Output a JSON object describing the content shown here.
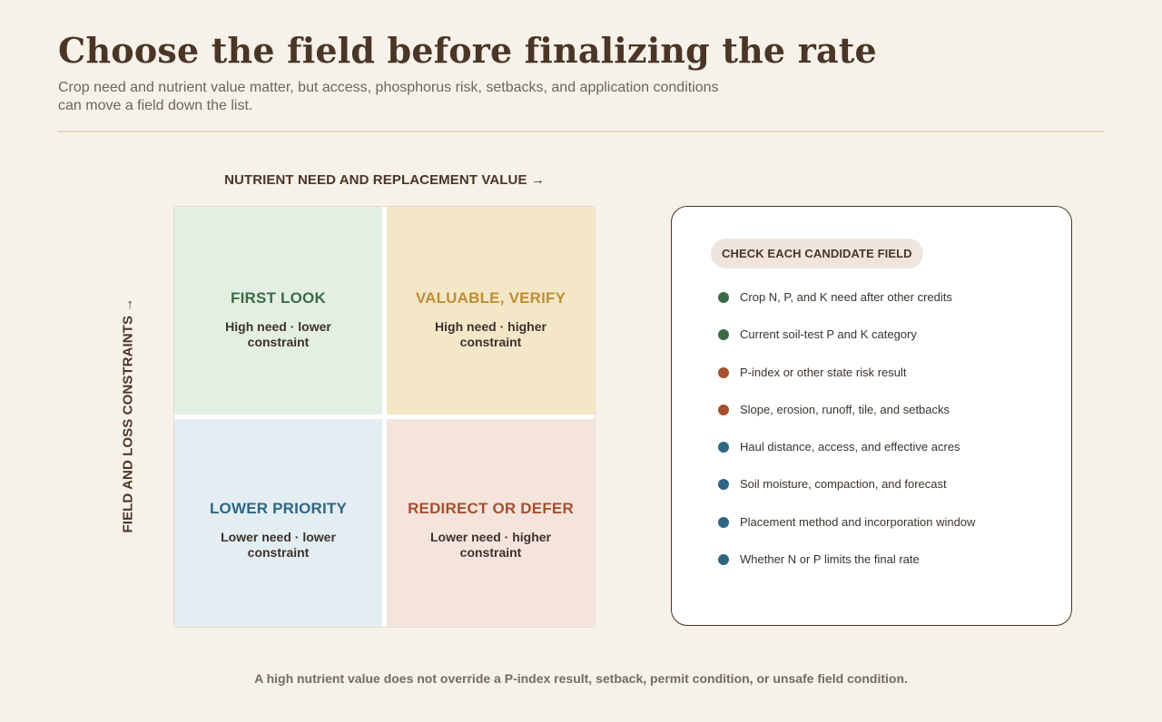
{
  "header": {
    "title": "Choose the field before finalizing the rate",
    "subtitle": "Crop need and nutrient value matter, but access, phosphorus risk, setbacks, and application conditions can move a field down the list."
  },
  "matrix": {
    "x_axis_label": "NUTRIENT NEED AND REPLACEMENT VALUE →",
    "y_axis_label": "FIELD AND LOSS CONSTRAINTS →",
    "quadrants": [
      {
        "title": "FIRST LOOK",
        "subtitle": "High need · lower constraint",
        "color": "#3b6b46",
        "fill": "#e4efe3"
      },
      {
        "title": "VALUABLE, VERIFY",
        "subtitle": "High need · higher constraint",
        "color": "#c08d34",
        "fill": "#f4e7c8"
      },
      {
        "title": "LOWER PRIORITY",
        "subtitle": "Lower need · lower constraint",
        "color": "#2f6684",
        "fill": "#e3edf2"
      },
      {
        "title": "REDIRECT OR DEFER",
        "subtitle": "Lower need · higher constraint",
        "color": "#a5502f",
        "fill": "#f5e4dc"
      }
    ]
  },
  "checklist": {
    "heading": "CHECK EACH CANDIDATE FIELD",
    "items": [
      {
        "text": "Crop N, P, and K need after other credits",
        "color": "#3b6b46"
      },
      {
        "text": "Current soil-test P and K category",
        "color": "#3b6b46"
      },
      {
        "text": "P-index or other state risk result",
        "color": "#a5502f"
      },
      {
        "text": "Slope, erosion, runoff, tile, and setbacks",
        "color": "#a5502f"
      },
      {
        "text": "Haul distance, access, and effective acres",
        "color": "#2f6684"
      },
      {
        "text": "Soil moisture, compaction, and forecast",
        "color": "#2f6684"
      },
      {
        "text": "Placement method and incorporation window",
        "color": "#2f6684"
      },
      {
        "text": "Whether N or P limits the final rate",
        "color": "#2f6684"
      }
    ]
  },
  "footer": {
    "note": "A high nutrient value does not override a P-index result, setback, permit condition, or unsafe field condition."
  }
}
